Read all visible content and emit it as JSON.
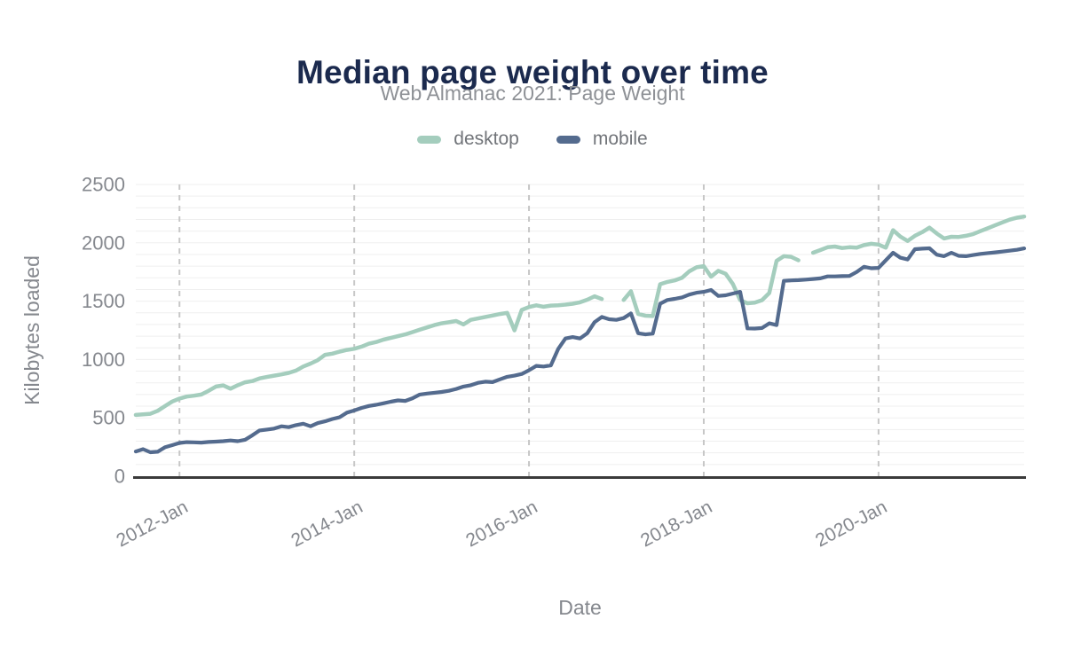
{
  "header": {
    "title": "Median page weight over time",
    "subtitle": "Web Almanac 2021: Page Weight"
  },
  "colors": {
    "background": "#ffffff",
    "title_text": "#1b2a4e",
    "subtitle_text": "#8e9196",
    "axis_text": "#85888e",
    "legend_text": "#717479",
    "minor_grid": "#efefef",
    "dashed_grid": "#c7c7c7",
    "axis_line": "#3a3a3a",
    "desktop_accent": "#a4cdbd",
    "mobile_accent": "#546b8e"
  },
  "chart_data": {
    "type": "line",
    "title": "Median page weight over time",
    "subtitle": "Web Almanac 2021: Page Weight",
    "xlabel": "Date",
    "ylabel": "Kilobytes loaded",
    "ylim": [
      0,
      2500
    ],
    "y_ticks": [
      0,
      500,
      1000,
      1500,
      2000,
      2500
    ],
    "y_minor_grid_step": 100,
    "grid": true,
    "legend_position": "top",
    "x_start_month": "2011-07",
    "x_interval": "monthly",
    "x_ticks": [
      {
        "index": 6,
        "label": "2012-Jan"
      },
      {
        "index": 30,
        "label": "2014-Jan"
      },
      {
        "index": 54,
        "label": "2016-Jan"
      },
      {
        "index": 78,
        "label": "2018-Jan"
      },
      {
        "index": 102,
        "label": "2020-Jan"
      }
    ],
    "series": [
      {
        "name": "desktop",
        "color": "#a4cdbd",
        "values": [
          525,
          530,
          535,
          560,
          600,
          640,
          665,
          682,
          690,
          700,
          732,
          768,
          778,
          750,
          780,
          805,
          815,
          838,
          850,
          862,
          872,
          885,
          905,
          940,
          965,
          995,
          1040,
          1050,
          1068,
          1082,
          1092,
          1110,
          1135,
          1150,
          1170,
          1185,
          1200,
          1215,
          1235,
          1255,
          1275,
          1295,
          1310,
          1320,
          1330,
          1300,
          1340,
          1352,
          1365,
          1377,
          1390,
          1400,
          1250,
          1425,
          1450,
          1464,
          1452,
          1462,
          1465,
          1470,
          1478,
          1490,
          1512,
          1542,
          1518,
          null,
          null,
          1510,
          1585,
          1390,
          1375,
          1372,
          1645,
          1665,
          1678,
          1700,
          1755,
          1790,
          1800,
          1710,
          1760,
          1735,
          1647,
          1508,
          1482,
          1487,
          1508,
          1570,
          1845,
          1885,
          1880,
          1850,
          null,
          1915,
          1938,
          1962,
          1968,
          1955,
          1962,
          1958,
          1980,
          1992,
          1985,
          1958,
          2108,
          2053,
          2016,
          2060,
          2091,
          2130,
          2080,
          2037,
          2052,
          2050,
          2060,
          2075,
          2100,
          2125,
          2150,
          2175,
          2198,
          2215,
          2225
        ]
      },
      {
        "name": "mobile",
        "color": "#546b8e",
        "values": [
          212,
          232,
          205,
          210,
          248,
          266,
          285,
          292,
          290,
          288,
          293,
          296,
          300,
          306,
          300,
          312,
          350,
          392,
          400,
          408,
          428,
          420,
          438,
          450,
          428,
          455,
          470,
          490,
          505,
          545,
          563,
          585,
          602,
          612,
          625,
          638,
          650,
          645,
          668,
          700,
          708,
          715,
          722,
          732,
          748,
          768,
          780,
          800,
          810,
          806,
          830,
          852,
          862,
          876,
          908,
          945,
          940,
          950,
          1090,
          1180,
          1192,
          1180,
          1225,
          1320,
          1365,
          1345,
          1340,
          1355,
          1395,
          1225,
          1215,
          1222,
          1478,
          1510,
          1520,
          1532,
          1556,
          1572,
          1580,
          1596,
          1545,
          1550,
          1565,
          1580,
          1267,
          1265,
          1270,
          1310,
          1295,
          1674,
          1678,
          1680,
          1685,
          1690,
          1695,
          1712,
          1712,
          1714,
          1716,
          1750,
          1795,
          1782,
          1785,
          1850,
          1915,
          1872,
          1857,
          1945,
          1950,
          1953,
          1898,
          1885,
          1915,
          1888,
          1885,
          1895,
          1905,
          1912,
          1918,
          1925,
          1932,
          1940,
          1952
        ]
      }
    ]
  }
}
